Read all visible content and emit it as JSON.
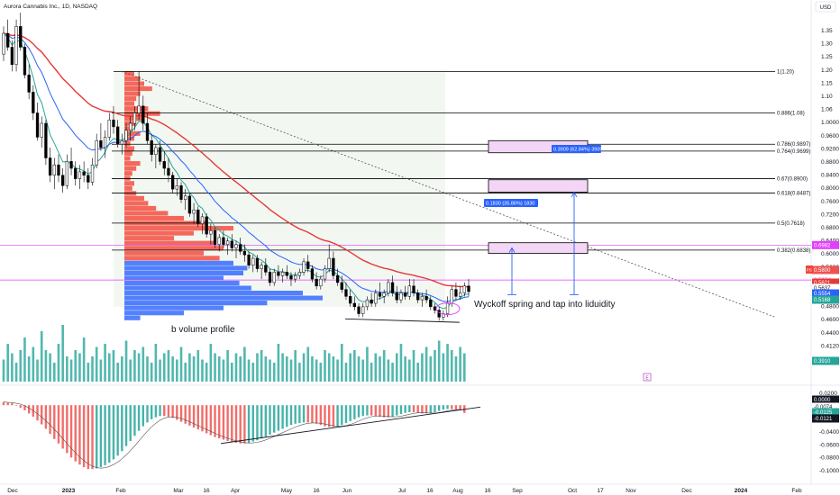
{
  "header": {
    "symbol_title": "Aurora Cannabis Inc., 1D, NASDAQ",
    "currency_button": "USD"
  },
  "colors": {
    "ema_fast": "#26a69a",
    "ema_mid": "#2962ff",
    "ema_slow": "#e53935",
    "fib_line": "#000000",
    "fib_box_fill": "#f3d6f5",
    "fib_box_stroke": "#000000",
    "pink_level": "#e040fb",
    "candle": "#000000",
    "volume_bar": "#26a69a",
    "vp_upper": "#f44336",
    "vp_lower": "#2962ff",
    "osc_pos": "#26a69a",
    "osc_neg": "#ef5350"
  },
  "chart_data": {
    "type": "candlestick",
    "symbol": "Aurora Cannabis Inc., 1D, NASDAQ",
    "currency": "USD",
    "x_ticks": [
      "Dec",
      "2023",
      "Feb",
      "Mar",
      "16",
      "Apr",
      "May",
      "16",
      "Jun",
      "Jul",
      "16",
      "Aug",
      "16",
      "Sep",
      "Oct",
      "17",
      "Nov",
      "Dec",
      "2024",
      "Feb"
    ],
    "y_ticks": [
      "1.35",
      "1.30",
      "1.25",
      "1.20",
      "1.15",
      "1.10",
      "1.06",
      "1.0000",
      "0.9600",
      "0.9200",
      "0.8800",
      "0.8400",
      "0.8000",
      "0.7600",
      "0.7200",
      "0.6800",
      "0.6400",
      "0.6000",
      "0.5600",
      "0.5200",
      "0.5000",
      "0.4800",
      "0.4600",
      "0.4400",
      "0.4120",
      "0.3910"
    ],
    "osc_ticks": [
      "0.0200",
      "0.0000",
      "-0.0200",
      "-0.0400",
      "-0.0600",
      "-0.0800",
      "-0.1000"
    ],
    "price_labels": {
      "pink_upper": "0.6982",
      "pink_lower": "0.5974",
      "last": "0.5800",
      "ema_slow": "0.5621",
      "close": "0.5637",
      "ema_mid": "0.5554",
      "ema_fast": "0.5168",
      "volume": "0.3910",
      "osc_a": "0.0000",
      "osc_b": "-0.0074",
      "osc_c": "-0.0125",
      "osc_d": "-0.0121"
    },
    "fib_levels": [
      {
        "label": "1(1.20)",
        "value": 1.2
      },
      {
        "label": "0.886(1.08)",
        "value": 1.08
      },
      {
        "label": "0.786(0.9897)",
        "value": 0.9897
      },
      {
        "label": "0.764(0.9699)",
        "value": 0.9699
      },
      {
        "label": "0.67(0.8900)",
        "value": 0.89
      },
      {
        "label": "0.618(0.8487)",
        "value": 0.8487
      },
      {
        "label": "0.5(0.7618)",
        "value": 0.7618
      },
      {
        "label": "0.382(0.6838)",
        "value": 0.6838
      }
    ],
    "measure_labels": [
      "0.1830 (35.86%) 1830",
      "0.3909 (62.84%) 3909"
    ],
    "annotations": [
      "Wyckoff spring and tap into liduidity",
      "b volume profile"
    ],
    "pl_badge": "PS",
    "ohlc": [
      [
        1.25,
        1.33,
        1.23,
        1.31
      ],
      [
        1.31,
        1.35,
        1.26,
        1.27
      ],
      [
        1.27,
        1.29,
        1.2,
        1.22
      ],
      [
        1.22,
        1.35,
        1.2,
        1.33
      ],
      [
        1.33,
        1.37,
        1.26,
        1.27
      ],
      [
        1.27,
        1.28,
        1.18,
        1.19
      ],
      [
        1.19,
        1.22,
        1.12,
        1.14
      ],
      [
        1.14,
        1.16,
        1.06,
        1.08
      ],
      [
        1.08,
        1.11,
        1.0,
        1.01
      ],
      [
        1.01,
        1.07,
        0.98,
        1.05
      ],
      [
        1.05,
        1.06,
        0.93,
        0.95
      ],
      [
        0.95,
        0.98,
        0.88,
        0.9
      ],
      [
        0.9,
        0.95,
        0.86,
        0.93
      ],
      [
        0.93,
        0.96,
        0.88,
        0.9
      ],
      [
        0.9,
        0.92,
        0.85,
        0.87
      ],
      [
        0.87,
        0.96,
        0.86,
        0.94
      ],
      [
        0.94,
        0.98,
        0.9,
        0.92
      ],
      [
        0.92,
        0.94,
        0.87,
        0.89
      ],
      [
        0.89,
        0.93,
        0.86,
        0.91
      ],
      [
        0.91,
        0.94,
        0.88,
        0.9
      ],
      [
        0.9,
        0.92,
        0.86,
        0.88
      ],
      [
        0.88,
        0.95,
        0.87,
        0.93
      ],
      [
        0.93,
        1.02,
        0.92,
        1.0
      ],
      [
        1.0,
        1.05,
        0.97,
        0.98
      ],
      [
        0.98,
        1.03,
        0.95,
        1.01
      ],
      [
        1.01,
        1.08,
        1.0,
        1.06
      ],
      [
        1.06,
        1.1,
        1.02,
        1.04
      ],
      [
        1.04,
        1.06,
        0.98,
        0.99
      ],
      [
        0.99,
        1.02,
        0.96,
        1.0
      ],
      [
        1.0,
        1.05,
        0.98,
        1.03
      ],
      [
        1.03,
        1.07,
        1.0,
        1.05
      ],
      [
        1.05,
        1.1,
        1.03,
        1.08
      ],
      [
        1.08,
        1.2,
        1.06,
        1.1
      ],
      [
        1.1,
        1.13,
        1.03,
        1.05
      ],
      [
        1.05,
        1.08,
        0.99,
        1.0
      ],
      [
        1.0,
        1.02,
        0.94,
        0.96
      ],
      [
        0.96,
        0.99,
        0.92,
        0.98
      ],
      [
        0.98,
        1.0,
        0.93,
        0.94
      ],
      [
        0.94,
        0.97,
        0.9,
        0.92
      ],
      [
        0.92,
        0.95,
        0.88,
        0.9
      ],
      [
        0.9,
        0.91,
        0.85,
        0.86
      ],
      [
        0.86,
        0.89,
        0.84,
        0.87
      ],
      [
        0.87,
        0.88,
        0.82,
        0.83
      ],
      [
        0.83,
        0.86,
        0.8,
        0.84
      ],
      [
        0.84,
        0.85,
        0.78,
        0.79
      ],
      [
        0.79,
        0.82,
        0.76,
        0.8
      ],
      [
        0.8,
        0.81,
        0.75,
        0.76
      ],
      [
        0.76,
        0.79,
        0.73,
        0.78
      ],
      [
        0.78,
        0.79,
        0.72,
        0.73
      ],
      [
        0.73,
        0.76,
        0.7,
        0.74
      ],
      [
        0.74,
        0.75,
        0.69,
        0.7
      ],
      [
        0.7,
        0.73,
        0.68,
        0.72
      ],
      [
        0.72,
        0.74,
        0.69,
        0.7
      ],
      [
        0.7,
        0.72,
        0.67,
        0.71
      ],
      [
        0.71,
        0.73,
        0.68,
        0.69
      ],
      [
        0.69,
        0.71,
        0.66,
        0.7
      ],
      [
        0.7,
        0.72,
        0.67,
        0.68
      ],
      [
        0.68,
        0.7,
        0.65,
        0.67
      ],
      [
        0.67,
        0.68,
        0.63,
        0.64
      ],
      [
        0.64,
        0.67,
        0.62,
        0.66
      ],
      [
        0.66,
        0.67,
        0.62,
        0.63
      ],
      [
        0.63,
        0.65,
        0.6,
        0.64
      ],
      [
        0.64,
        0.66,
        0.61,
        0.62
      ],
      [
        0.62,
        0.63,
        0.58,
        0.59
      ],
      [
        0.59,
        0.63,
        0.58,
        0.62
      ],
      [
        0.62,
        0.64,
        0.6,
        0.61
      ],
      [
        0.61,
        0.63,
        0.59,
        0.62
      ],
      [
        0.62,
        0.64,
        0.6,
        0.61
      ],
      [
        0.61,
        0.62,
        0.58,
        0.6
      ],
      [
        0.6,
        0.62,
        0.59,
        0.61
      ],
      [
        0.61,
        0.63,
        0.6,
        0.62
      ],
      [
        0.62,
        0.66,
        0.61,
        0.65
      ],
      [
        0.65,
        0.67,
        0.62,
        0.63
      ],
      [
        0.63,
        0.64,
        0.59,
        0.6
      ],
      [
        0.6,
        0.62,
        0.57,
        0.58
      ],
      [
        0.58,
        0.61,
        0.57,
        0.6
      ],
      [
        0.6,
        0.64,
        0.59,
        0.63
      ],
      [
        0.63,
        0.7,
        0.62,
        0.66
      ],
      [
        0.66,
        0.68,
        0.6,
        0.61
      ],
      [
        0.61,
        0.63,
        0.58,
        0.59
      ],
      [
        0.59,
        0.61,
        0.56,
        0.57
      ],
      [
        0.57,
        0.59,
        0.54,
        0.55
      ],
      [
        0.55,
        0.57,
        0.52,
        0.53
      ],
      [
        0.53,
        0.55,
        0.51,
        0.52
      ],
      [
        0.52,
        0.53,
        0.49,
        0.5
      ],
      [
        0.5,
        0.53,
        0.49,
        0.52
      ],
      [
        0.52,
        0.55,
        0.51,
        0.54
      ],
      [
        0.54,
        0.56,
        0.52,
        0.53
      ],
      [
        0.53,
        0.57,
        0.52,
        0.56
      ],
      [
        0.56,
        0.59,
        0.54,
        0.55
      ],
      [
        0.55,
        0.57,
        0.53,
        0.56
      ],
      [
        0.56,
        0.6,
        0.55,
        0.59
      ],
      [
        0.59,
        0.61,
        0.55,
        0.56
      ],
      [
        0.56,
        0.58,
        0.53,
        0.54
      ],
      [
        0.54,
        0.57,
        0.53,
        0.56
      ],
      [
        0.56,
        0.58,
        0.54,
        0.55
      ],
      [
        0.55,
        0.6,
        0.54,
        0.58
      ],
      [
        0.58,
        0.6,
        0.55,
        0.56
      ],
      [
        0.56,
        0.57,
        0.53,
        0.54
      ],
      [
        0.54,
        0.56,
        0.52,
        0.55
      ],
      [
        0.55,
        0.57,
        0.53,
        0.54
      ],
      [
        0.54,
        0.55,
        0.51,
        0.52
      ],
      [
        0.52,
        0.53,
        0.5,
        0.51
      ],
      [
        0.51,
        0.52,
        0.48,
        0.49
      ],
      [
        0.49,
        0.51,
        0.48,
        0.5
      ],
      [
        0.5,
        0.55,
        0.49,
        0.53
      ],
      [
        0.53,
        0.58,
        0.52,
        0.57
      ],
      [
        0.57,
        0.59,
        0.54,
        0.55
      ],
      [
        0.55,
        0.58,
        0.54,
        0.56
      ],
      [
        0.56,
        0.59,
        0.55,
        0.58
      ],
      [
        0.58,
        0.6,
        0.55,
        0.5637
      ]
    ],
    "volume": [
      0.35,
      0.6,
      0.45,
      0.3,
      0.5,
      0.7,
      0.4,
      0.55,
      0.35,
      0.8,
      0.5,
      0.45,
      0.3,
      0.6,
      0.9,
      0.4,
      0.35,
      0.5,
      0.45,
      0.7,
      0.3,
      0.4,
      0.55,
      0.35,
      0.6,
      0.45,
      0.5,
      0.3,
      0.4,
      0.65,
      0.35,
      0.5,
      0.45,
      0.55,
      0.4,
      0.3,
      0.6,
      0.35,
      0.45,
      0.5,
      0.4,
      0.35,
      0.55,
      0.3,
      0.45,
      0.4,
      0.5,
      0.35,
      0.3,
      0.6,
      0.45,
      0.4,
      0.35,
      0.5,
      0.3,
      0.45,
      0.4,
      0.55,
      0.35,
      0.3,
      0.45,
      0.5,
      0.4,
      0.35,
      0.3,
      0.6,
      0.45,
      0.4,
      0.35,
      0.5,
      0.3,
      0.45,
      0.55,
      0.4,
      0.35,
      0.3,
      0.5,
      0.45,
      0.4,
      0.35,
      0.6,
      0.3,
      0.45,
      0.5,
      0.4,
      0.35,
      0.55,
      0.3,
      0.45,
      0.4,
      0.5,
      0.35,
      0.3,
      0.45,
      0.6,
      0.4,
      0.35,
      0.5,
      0.3,
      0.45,
      0.55,
      0.4,
      0.5,
      0.65,
      0.45,
      0.6,
      0.5,
      0.4,
      0.55,
      0.45
    ],
    "volume_profile": [
      0.05,
      0.08,
      0.1,
      0.14,
      0.08,
      0.06,
      0.05,
      0.12,
      0.18,
      0.1,
      0.06,
      0.04,
      0.08,
      0.05,
      0.03,
      0.05,
      0.04,
      0.03,
      0.08,
      0.06,
      0.04,
      0.03,
      0.05,
      0.04,
      0.06,
      0.1,
      0.12,
      0.16,
      0.22,
      0.3,
      0.42,
      0.55,
      0.35,
      0.25,
      0.45,
      0.5,
      0.4,
      0.48,
      0.55,
      0.62,
      0.6,
      0.5,
      0.58,
      0.64,
      0.9,
      1.0,
      0.72,
      0.5,
      0.3,
      0.08
    ],
    "oscillator": [
      0.005,
      0.004,
      0.003,
      0.0,
      -0.004,
      -0.008,
      -0.013,
      -0.018,
      -0.024,
      -0.03,
      -0.037,
      -0.045,
      -0.053,
      -0.06,
      -0.068,
      -0.075,
      -0.082,
      -0.088,
      -0.093,
      -0.097,
      -0.1,
      -0.1,
      -0.099,
      -0.097,
      -0.094,
      -0.09,
      -0.085,
      -0.079,
      -0.072,
      -0.064,
      -0.056,
      -0.048,
      -0.04,
      -0.033,
      -0.027,
      -0.022,
      -0.019,
      -0.017,
      -0.017,
      -0.018,
      -0.02,
      -0.023,
      -0.026,
      -0.029,
      -0.032,
      -0.035,
      -0.038,
      -0.041,
      -0.044,
      -0.047,
      -0.05,
      -0.052,
      -0.054,
      -0.056,
      -0.058,
      -0.059,
      -0.06,
      -0.06,
      -0.059,
      -0.057,
      -0.055,
      -0.052,
      -0.049,
      -0.046,
      -0.043,
      -0.04,
      -0.037,
      -0.034,
      -0.031,
      -0.029,
      -0.028,
      -0.027,
      -0.027,
      -0.028,
      -0.029,
      -0.031,
      -0.033,
      -0.034,
      -0.034,
      -0.033,
      -0.031,
      -0.028,
      -0.025,
      -0.022,
      -0.019,
      -0.017,
      -0.016,
      -0.016,
      -0.017,
      -0.018,
      -0.019,
      -0.019,
      -0.018,
      -0.016,
      -0.014,
      -0.012,
      -0.011,
      -0.011,
      -0.012,
      -0.013,
      -0.013,
      -0.012,
      -0.011,
      -0.009,
      -0.007,
      -0.006,
      -0.006,
      -0.007,
      -0.008,
      -0.0121
    ]
  }
}
